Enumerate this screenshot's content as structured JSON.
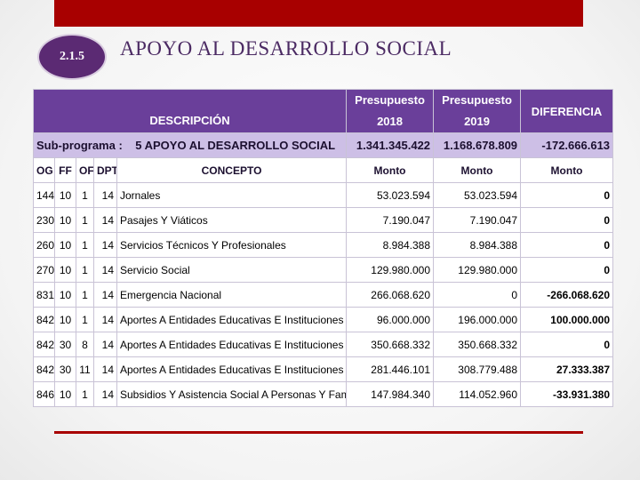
{
  "slide": {
    "number": "2.1.5",
    "title": "APOYO AL DESARROLLO SOCIAL"
  },
  "table": {
    "headers": {
      "descripcion": "DESCRIPCIÓN",
      "presupuesto_2018": [
        "Presupuesto",
        "2018"
      ],
      "presupuesto_2019": [
        "Presupuesto",
        "2019"
      ],
      "diferencia": "DIFERENCIA"
    },
    "subprograma": {
      "label": "Sub-programa :",
      "name": "5 APOYO AL DESARROLLO SOCIAL",
      "total_2018": "1.341.345.422",
      "total_2019": "1.168.678.809",
      "diferencia": "-172.666.613"
    },
    "column_headers": [
      "OG",
      "FF",
      "OF",
      "DPT",
      "CONCEPTO",
      "Monto",
      "Monto",
      "Monto"
    ],
    "rows": [
      {
        "og": "144",
        "ff": "10",
        "of": "1",
        "dpt": "14",
        "concepto": "Jornales",
        "m2018": "53.023.594",
        "m2019": "53.023.594",
        "dif": "0"
      },
      {
        "og": "230",
        "ff": "10",
        "of": "1",
        "dpt": "14",
        "concepto": "Pasajes Y Viáticos",
        "m2018": "7.190.047",
        "m2019": "7.190.047",
        "dif": "0"
      },
      {
        "og": "260",
        "ff": "10",
        "of": "1",
        "dpt": "14",
        "concepto": "Servicios Técnicos Y Profesionales",
        "m2018": "8.984.388",
        "m2019": "8.984.388",
        "dif": "0"
      },
      {
        "og": "270",
        "ff": "10",
        "of": "1",
        "dpt": "14",
        "concepto": "Servicio Social",
        "m2018": "129.980.000",
        "m2019": "129.980.000",
        "dif": "0"
      },
      {
        "og": "831",
        "ff": "10",
        "of": "1",
        "dpt": "14",
        "concepto": "Emergencia Nacional",
        "m2018": "266.068.620",
        "m2019": "0",
        "dif": "-266.068.620"
      },
      {
        "og": "842",
        "ff": "10",
        "of": "1",
        "dpt": "14",
        "concepto": "Aportes A Entidades Educativas E Instituciones Sin Fines",
        "m2018": "96.000.000",
        "m2019": "196.000.000",
        "dif": "100.000.000"
      },
      {
        "og": "842",
        "ff": "30",
        "of": "8",
        "dpt": "14",
        "concepto": "Aportes A Entidades Educativas E Instituciones Sin Fines",
        "m2018": "350.668.332",
        "m2019": "350.668.332",
        "dif": "0"
      },
      {
        "og": "842",
        "ff": "30",
        "of": "11",
        "dpt": "14",
        "concepto": "Aportes A Entidades Educativas E Instituciones Sin Fines",
        "m2018": "281.446.101",
        "m2019": "308.779.488",
        "dif": "27.333.387"
      },
      {
        "og": "846",
        "ff": "10",
        "of": "1",
        "dpt": "14",
        "concepto": "Subsidios Y Asistencia Social A Personas Y Familias Del S",
        "m2018": "147.984.340",
        "m2019": "114.052.960",
        "dif": "-33.931.380"
      }
    ]
  }
}
